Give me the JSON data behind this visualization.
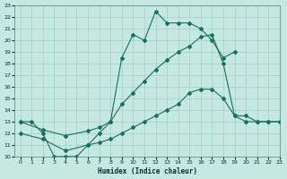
{
  "xlabel": "Humidex (Indice chaleur)",
  "xlim": [
    -0.5,
    23
  ],
  "ylim": [
    10,
    23
  ],
  "bg_color": "#c5e8e0",
  "grid_color": "#a8cec8",
  "line_color": "#1a7060",
  "line1_x": [
    0,
    1,
    2,
    3,
    4,
    5,
    6,
    7,
    8,
    9,
    10,
    11,
    12,
    13,
    14,
    15,
    16,
    17,
    18,
    19
  ],
  "line1_y": [
    13,
    13,
    12,
    10,
    10,
    10,
    11,
    12,
    13,
    18.5,
    20.5,
    20,
    22.5,
    21.5,
    21.5,
    21.5,
    21,
    20,
    18.5,
    19
  ],
  "line2_x": [
    0,
    2,
    4,
    6,
    7,
    8,
    9,
    10,
    11,
    12,
    13,
    14,
    15,
    16,
    17,
    18,
    19,
    20,
    21,
    22,
    23
  ],
  "line2_y": [
    13,
    12.3,
    11.8,
    12.2,
    12.5,
    13,
    14.5,
    15.5,
    16.5,
    17.5,
    18.3,
    19,
    19.5,
    20.3,
    20.5,
    18,
    13.5,
    13,
    13,
    13,
    13
  ],
  "line3_x": [
    0,
    2,
    4,
    6,
    7,
    8,
    9,
    10,
    11,
    12,
    13,
    14,
    15,
    16,
    17,
    18,
    19,
    20,
    21,
    22,
    23
  ],
  "line3_y": [
    12,
    11.5,
    10.5,
    11,
    11.2,
    11.5,
    12,
    12.5,
    13,
    13.5,
    14,
    14.5,
    15.5,
    15.8,
    15.8,
    15,
    13.5,
    13.5,
    13,
    13,
    13
  ]
}
